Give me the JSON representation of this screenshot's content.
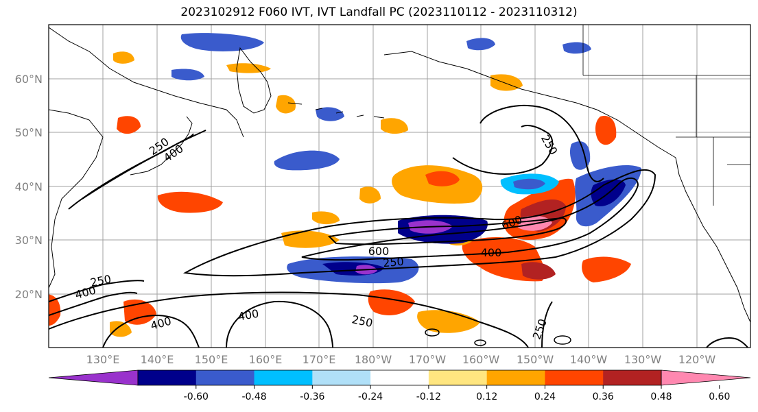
{
  "title": "2023102912 F060 IVT, IVT Landfall PC (2023110112 - 2023110312)",
  "colors": {
    "frame": "#000000",
    "grid": "#a0a0a0",
    "tick_label": "#808080",
    "contour": "#000000"
  },
  "axes": {
    "lat_labels": [
      "60°N",
      "50°N",
      "40°N",
      "30°N",
      "20°N"
    ],
    "lon_labels": [
      "130°E",
      "140°E",
      "150°E",
      "160°E",
      "170°E",
      "180°W",
      "170°W",
      "160°W",
      "150°W",
      "140°W",
      "130°W",
      "120°W"
    ]
  },
  "contour_labels": [
    "250",
    "400",
    "250",
    "400",
    "600",
    "250",
    "600",
    "400",
    "400",
    "400",
    "250",
    "250",
    "250"
  ],
  "colorbar": {
    "colors": [
      "#9932cc",
      "#00008b",
      "#3a5bcc",
      "#00bfff",
      "#b0e0f8",
      "#ffffff",
      "#ffe680",
      "#ffa500",
      "#ff4500",
      "#b22222",
      "#ff88b0"
    ],
    "tick_labels": [
      "-0.60",
      "-0.48",
      "-0.36",
      "-0.24",
      "-0.12",
      "0.12",
      "0.24",
      "0.36",
      "0.48",
      "0.60"
    ]
  }
}
